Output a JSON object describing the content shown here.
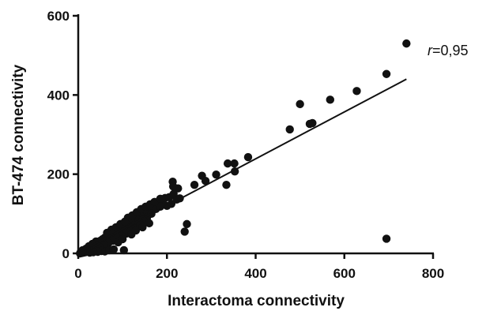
{
  "chart_data": {
    "type": "scatter",
    "xlabel": "Interactoma connectivity",
    "ylabel": "BT-474 connectivity",
    "xlim": [
      0,
      800
    ],
    "ylim": [
      0,
      600
    ],
    "xticks": [
      0,
      200,
      400,
      600,
      800
    ],
    "yticks": [
      0,
      200,
      400,
      600
    ],
    "x_tick_labels": [
      "0",
      "200",
      "400",
      "600",
      "800"
    ],
    "y_tick_labels": [
      "0",
      "200",
      "400",
      "600"
    ],
    "grid": false,
    "annotation": {
      "prefix": "r",
      "text": "=0,95"
    },
    "regression_line": {
      "x_start": 0,
      "y_start": 2,
      "x_end": 740,
      "y_end": 440
    },
    "point_color": "#111111",
    "points": [
      [
        740,
        530
      ],
      [
        695,
        453
      ],
      [
        628,
        410
      ],
      [
        568,
        388
      ],
      [
        500,
        377
      ],
      [
        528,
        329
      ],
      [
        522,
        327
      ],
      [
        477,
        313
      ],
      [
        383,
        243
      ],
      [
        352,
        227
      ],
      [
        337,
        227
      ],
      [
        353,
        207
      ],
      [
        279,
        196
      ],
      [
        287,
        183
      ],
      [
        311,
        199
      ],
      [
        334,
        173
      ],
      [
        262,
        173
      ],
      [
        225,
        164
      ],
      [
        213,
        181
      ],
      [
        214,
        169
      ],
      [
        196,
        140
      ],
      [
        229,
        139
      ],
      [
        222,
        136
      ],
      [
        245,
        74
      ],
      [
        240,
        55
      ],
      [
        695,
        37
      ],
      [
        103,
        8
      ],
      [
        180,
        126
      ],
      [
        170,
        118
      ],
      [
        160,
        110
      ],
      [
        150,
        102
      ],
      [
        140,
        95
      ],
      [
        130,
        88
      ],
      [
        120,
        80
      ],
      [
        110,
        74
      ],
      [
        100,
        68
      ],
      [
        90,
        61
      ],
      [
        80,
        54
      ],
      [
        70,
        47
      ],
      [
        60,
        40
      ],
      [
        55,
        36
      ],
      [
        50,
        32
      ],
      [
        45,
        29
      ],
      [
        40,
        25
      ],
      [
        35,
        21
      ],
      [
        30,
        18
      ],
      [
        25,
        14
      ],
      [
        20,
        11
      ],
      [
        15,
        8
      ],
      [
        10,
        5
      ],
      [
        5,
        2
      ],
      [
        155,
        90
      ],
      [
        145,
        85
      ],
      [
        135,
        78
      ],
      [
        125,
        70
      ],
      [
        115,
        65
      ],
      [
        105,
        58
      ],
      [
        95,
        50
      ],
      [
        85,
        45
      ],
      [
        75,
        40
      ],
      [
        65,
        33
      ],
      [
        58,
        28
      ],
      [
        48,
        22
      ],
      [
        38,
        16
      ],
      [
        28,
        10
      ],
      [
        18,
        5
      ],
      [
        12,
        2
      ],
      [
        200,
        120
      ],
      [
        190,
        132
      ],
      [
        175,
        112
      ],
      [
        165,
        100
      ],
      [
        185,
        118
      ],
      [
        150,
        80
      ],
      [
        140,
        72
      ],
      [
        128,
        62
      ],
      [
        118,
        56
      ],
      [
        108,
        50
      ],
      [
        98,
        44
      ],
      [
        88,
        38
      ],
      [
        78,
        32
      ],
      [
        68,
        26
      ],
      [
        58,
        20
      ],
      [
        48,
        15
      ],
      [
        42,
        12
      ],
      [
        36,
        9
      ],
      [
        30,
        7
      ],
      [
        22,
        4
      ],
      [
        16,
        3
      ],
      [
        8,
        1
      ],
      [
        4,
        0
      ],
      [
        60,
        5
      ],
      [
        70,
        8
      ],
      [
        80,
        10
      ],
      [
        52,
        6
      ],
      [
        44,
        4
      ],
      [
        34,
        3
      ],
      [
        26,
        2
      ],
      [
        90,
        28
      ],
      [
        100,
        36
      ],
      [
        120,
        48
      ],
      [
        130,
        58
      ],
      [
        145,
        66
      ],
      [
        160,
        76
      ],
      [
        112,
        90
      ],
      [
        122,
        96
      ],
      [
        132,
        104
      ],
      [
        142,
        112
      ],
      [
        152,
        118
      ],
      [
        162,
        124
      ],
      [
        172,
        130
      ],
      [
        185,
        138
      ],
      [
        205,
        142
      ],
      [
        215,
        150
      ],
      [
        210,
        125
      ],
      [
        75,
        60
      ],
      [
        65,
        52
      ],
      [
        85,
        66
      ],
      [
        95,
        74
      ],
      [
        105,
        80
      ],
      [
        40,
        30
      ],
      [
        32,
        24
      ],
      [
        24,
        18
      ],
      [
        18,
        12
      ],
      [
        10,
        8
      ]
    ]
  }
}
